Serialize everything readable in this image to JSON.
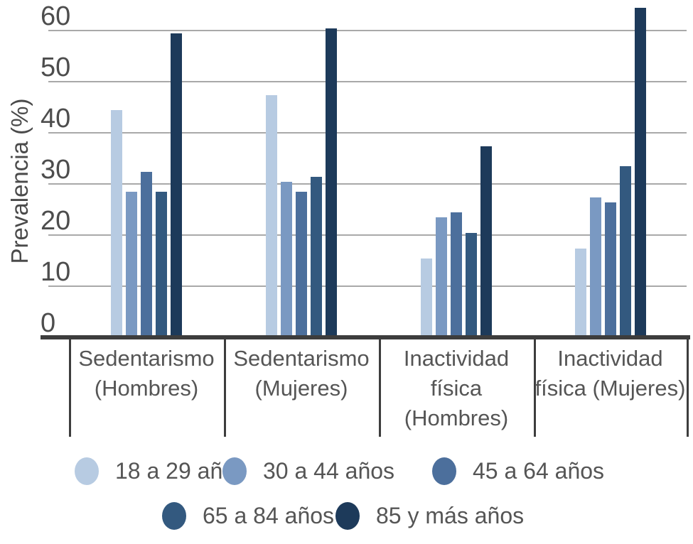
{
  "chart_data": {
    "type": "bar",
    "title": "",
    "ylabel": "Prevalencia (%)",
    "xlabel": "",
    "ylim": [
      0,
      66
    ],
    "yticks": [
      60,
      50,
      40,
      30,
      20,
      10,
      0
    ],
    "grid": true,
    "legend_position": "bottom",
    "categories": [
      "Sedentarismo (Hombres)",
      "Sedentarismo (Mujeres)",
      "Inactividad física (Hombres)",
      "Inactividad física (Mujeres)"
    ],
    "category_label_lines": [
      [
        "Sedentarismo",
        "(Hombres)"
      ],
      [
        "Sedentarismo",
        "(Mujeres)"
      ],
      [
        "Inactividad",
        "física",
        "(Hombres)"
      ],
      [
        "Inactividad",
        "física (Mujeres)"
      ]
    ],
    "series": [
      {
        "name": "18 a 29 años",
        "color": "#b7cbe2",
        "values": [
          44,
          47,
          15,
          17
        ]
      },
      {
        "name": "30 a 44 años",
        "color": "#7a99c2",
        "values": [
          28,
          30,
          23,
          27
        ]
      },
      {
        "name": "45 a 64 años",
        "color": "#4c6f9c",
        "values": [
          32,
          28,
          24,
          26
        ]
      },
      {
        "name": "65 a 84 años",
        "color": "#33597f",
        "values": [
          28,
          31,
          20,
          33
        ]
      },
      {
        "name": "85 y más años",
        "color": "#1d3a5a",
        "values": [
          59,
          60,
          37,
          64
        ]
      }
    ]
  },
  "colors": {
    "gridline": "#a9a9a9",
    "axis": "#3d3d3d",
    "tick_text": "#4d4d4d",
    "label_text": "#555555"
  }
}
